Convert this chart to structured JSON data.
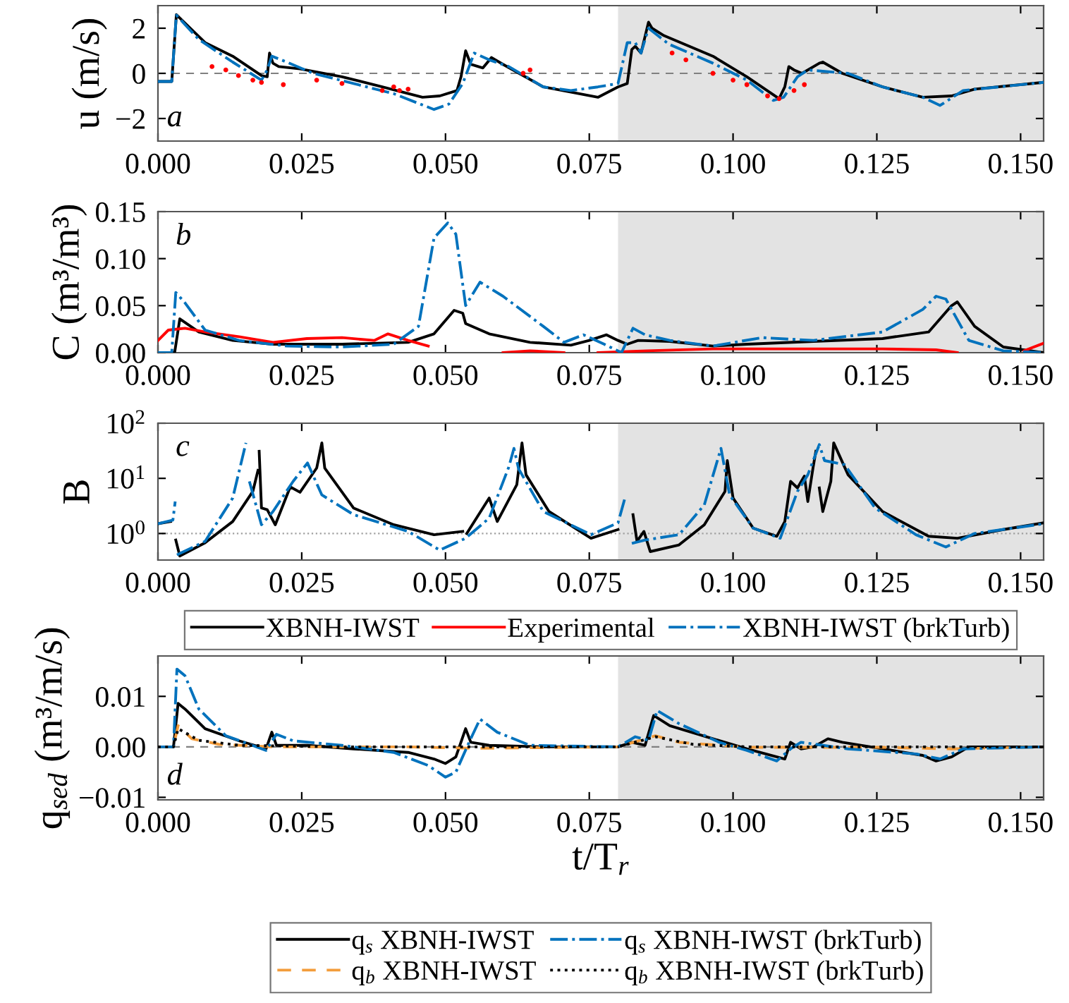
{
  "chart_data": [
    {
      "type": "line",
      "ylabel": "u (m/s)",
      "annotations": [
        "a"
      ],
      "xlim": [
        0,
        0.154
      ],
      "ylim": [
        -3,
        3
      ],
      "xticks": [
        {
          "value": 0,
          "label": "0.000"
        },
        {
          "value": 0.025,
          "label": "0.025"
        },
        {
          "value": 0.05,
          "label": "0.050"
        },
        {
          "value": 0.075,
          "label": "0.075"
        },
        {
          "value": 0.1,
          "label": "0.100"
        },
        {
          "value": 0.125,
          "label": "0.125"
        },
        {
          "value": 0.15,
          "label": "0.150"
        }
      ],
      "yticks": [
        {
          "value": -2,
          "label": "−2"
        },
        0,
        2
      ],
      "bands": [
        {
          "axis": "x",
          "from": 0.08,
          "to": 0.154,
          "color": "#e3e3e3"
        }
      ],
      "ref_lines": [
        {
          "axis": "y",
          "value": 0,
          "color": "#808080",
          "line_style": "dashed"
        }
      ],
      "series": [
        {
          "color": "#000000",
          "line_style": "solid",
          "x": [
            0,
            0.0024,
            0.0032,
            0.0082,
            0.013,
            0.018,
            0.019,
            0.0194,
            0.02,
            0.021,
            0.0247,
            0.032,
            0.039,
            0.046,
            0.049,
            0.052,
            0.0527,
            0.0535,
            0.0544,
            0.0565,
            0.058,
            0.06,
            0.067,
            0.0765,
            0.08,
            0.0816,
            0.0824,
            0.083,
            0.084,
            0.0853,
            0.0859,
            0.088,
            0.0965,
            0.1024,
            0.108,
            0.109,
            0.1097,
            0.1106,
            0.112,
            0.115,
            0.1156,
            0.119,
            0.126,
            0.133,
            0.138,
            0.142,
            0.154
          ],
          "values": [
            -0.36,
            -0.36,
            2.6,
            1.36,
            0.76,
            -0.1,
            -0.15,
            0.9,
            0.45,
            0.3,
            0.2,
            -0.15,
            -0.6,
            -1.06,
            -1.0,
            -0.76,
            -0.15,
            1.0,
            0.4,
            0.24,
            0.7,
            0.4,
            -0.6,
            -1.06,
            -0.6,
            -0.45,
            1.06,
            1.2,
            0.9,
            2.27,
            2.0,
            1.67,
            0.76,
            -0.15,
            -1.12,
            -0.6,
            0.3,
            0.15,
            0,
            0.45,
            0.5,
            0,
            -0.6,
            -1.06,
            -1.0,
            -0.7,
            -0.4
          ]
        },
        {
          "color": "#ff0000",
          "type": "scatter",
          "marker": "circle",
          "x": [
            0.0094,
            0.0118,
            0.014,
            0.0165,
            0.018,
            0.0218,
            0.0276,
            0.032,
            0.039,
            0.041,
            0.042,
            0.0435,
            0.0635,
            0.0647,
            0.0894,
            0.0918,
            0.0965,
            0.1,
            0.1024,
            0.106,
            0.108,
            0.1106,
            0.1124
          ],
          "values": [
            0.3,
            0.15,
            -0.1,
            -0.3,
            -0.4,
            -0.5,
            -0.3,
            -0.45,
            -0.76,
            -0.6,
            -0.76,
            -0.7,
            0,
            0.15,
            0.9,
            0.6,
            0,
            -0.3,
            -0.5,
            -1.0,
            -1.12,
            -0.76,
            -0.5
          ]
        },
        {
          "color": "#0072bd",
          "line_style": "dashdot",
          "x": [
            0,
            0.0024,
            0.0032,
            0.0071,
            0.013,
            0.018,
            0.019,
            0.0198,
            0.0224,
            0.027,
            0.034,
            0.041,
            0.048,
            0.0506,
            0.053,
            0.055,
            0.0576,
            0.061,
            0.067,
            0.0718,
            0.0765,
            0.08,
            0.0816,
            0.083,
            0.084,
            0.0853,
            0.0888,
            0.0965,
            0.1024,
            0.107,
            0.1088,
            0.1112,
            0.113,
            0.12,
            0.126,
            0.133,
            0.136,
            0.14,
            0.154
          ],
          "values": [
            -0.36,
            -0.36,
            2.58,
            1.5,
            0.5,
            -0.3,
            0.15,
            0.76,
            0.5,
            0,
            -0.45,
            -0.9,
            -1.6,
            -1.36,
            -0.45,
            0.9,
            0.6,
            0.3,
            -0.6,
            -0.76,
            -0.6,
            -0.45,
            1.36,
            1.36,
            0.9,
            2.0,
            1.3,
            0.45,
            -0.3,
            -1.2,
            -1.06,
            -0.15,
            0.15,
            0,
            -0.6,
            -1.06,
            -1.42,
            -0.76,
            -0.4
          ]
        }
      ]
    },
    {
      "type": "line",
      "ylabel": "C (m³/m³)",
      "annotations": [
        "b"
      ],
      "xlim": [
        0,
        0.154
      ],
      "ylim": [
        0,
        0.15
      ],
      "legend": "bottom",
      "xticks": [
        {
          "value": 0,
          "label": "0.000"
        },
        {
          "value": 0.025,
          "label": "0.025"
        },
        {
          "value": 0.05,
          "label": "0.050"
        },
        {
          "value": 0.075,
          "label": "0.075"
        },
        {
          "value": 0.1,
          "label": "0.100"
        },
        {
          "value": 0.125,
          "label": "0.125"
        },
        {
          "value": 0.15,
          "label": "0.150"
        }
      ],
      "yticks": [
        {
          "value": 0,
          "label": "0.00"
        },
        {
          "value": 0.05,
          "label": "0.05"
        },
        {
          "value": 0.1,
          "label": "0.10"
        },
        {
          "value": 0.15,
          "label": "0.15"
        }
      ],
      "bands": [
        {
          "axis": "x",
          "from": 0.08,
          "to": 0.154,
          "color": "#e3e3e3"
        }
      ],
      "series": [
        {
          "name": "XBNH-IWST",
          "color": "#000000",
          "line_style": "solid",
          "x": [
            0,
            0.0029,
            0.0038,
            0.0071,
            0.013,
            0.02,
            0.032,
            0.0435,
            0.048,
            0.0515,
            0.053,
            0.0535,
            0.0576,
            0.0647,
            0.0718,
            0.075,
            0.078,
            0.08,
            0.0816,
            0.0835,
            0.089,
            0.0965,
            0.1024,
            0.114,
            0.126,
            0.134,
            0.138,
            0.139,
            0.142,
            0.147,
            0.154
          ],
          "values": [
            0,
            0,
            0.036,
            0.022,
            0.013,
            0.009,
            0.009,
            0.011,
            0.02,
            0.045,
            0.042,
            0.031,
            0.02,
            0.011,
            0.008,
            0.013,
            0.019,
            0.013,
            0.009,
            0.013,
            0.012,
            0.007,
            0.009,
            0.012,
            0.015,
            0.022,
            0.05,
            0.054,
            0.028,
            0.006,
            0
          ]
        },
        {
          "name": "Experimental",
          "color": "#ff0000",
          "line_style": "solid",
          "x": [
            0,
            0.0018,
            0.0047,
            0.0082,
            0.0141,
            0.02,
            0.0259,
            0.032,
            0.0376,
            0.04,
            0.0435,
            0.047,
            0.05,
            0.06,
            0.0647,
            0.0706,
            0.073,
            0.0765,
            0.085,
            0.0965,
            0.114,
            0.126,
            0.1353,
            0.139,
            0.145,
            0.1506,
            0.154
          ],
          "values": [
            0.013,
            0.024,
            0.026,
            0.022,
            0.017,
            0.011,
            0.015,
            0.016,
            0.013,
            0.02,
            0.013,
            0.007,
            null,
            0,
            0.002,
            0,
            null,
            0,
            0.002,
            0.004,
            0.004,
            0.004,
            0.003,
            0,
            null,
            0.002,
            0.01
          ]
        },
        {
          "name": "XBNH-IWST (brkTurb)",
          "color": "#0072bd",
          "line_style": "dashdot",
          "x": [
            0,
            0.0024,
            0.0031,
            0.0047,
            0.0082,
            0.0141,
            0.0224,
            0.032,
            0.041,
            0.0453,
            0.048,
            0.0504,
            0.0518,
            0.0535,
            0.056,
            0.06,
            0.067,
            0.0706,
            0.074,
            0.0776,
            0.0806,
            0.0826,
            0.0847,
            0.089,
            0.0965,
            0.105,
            0.114,
            0.126,
            0.133,
            0.1353,
            0.137,
            0.141,
            0.147,
            0.154
          ],
          "values": [
            0,
            0,
            0.064,
            0.053,
            0.024,
            0.013,
            0.007,
            0.006,
            0.009,
            0.028,
            0.122,
            0.138,
            0.126,
            0.05,
            0.075,
            0.06,
            0.028,
            0.011,
            0.019,
            0.009,
            0,
            0.026,
            0.019,
            0.013,
            0.007,
            0.016,
            0.013,
            0.022,
            0.046,
            0.06,
            0.057,
            0.013,
            0.002,
            0
          ]
        }
      ]
    },
    {
      "type": "line",
      "ylabel": "B",
      "annotations": [
        "c"
      ],
      "log": "y",
      "xlim": [
        0,
        0.154
      ],
      "ylim": [
        0.33,
        100
      ],
      "xticks": [
        {
          "value": 0,
          "label": "0.000"
        },
        {
          "value": 0.025,
          "label": "0.025"
        },
        {
          "value": 0.05,
          "label": "0.050"
        },
        {
          "value": 0.075,
          "label": "0.075"
        },
        {
          "value": 0.1,
          "label": "0.100"
        },
        {
          "value": 0.125,
          "label": "0.125"
        },
        {
          "value": 0.15,
          "label": "0.150"
        }
      ],
      "yticks": [
        {
          "value": 1,
          "label": "10$^{0}$"
        },
        {
          "value": 10,
          "label": "10$^{1}$"
        },
        {
          "value": 100,
          "label": "10$^{2}$"
        }
      ],
      "bands": [
        {
          "axis": "x",
          "from": 0.08,
          "to": 0.154,
          "color": "#e3e3e3"
        }
      ],
      "ref_lines": [
        {
          "axis": "y",
          "value": 1,
          "color": "#a0a0a0",
          "line_style": "dotted"
        }
      ],
      "series": [
        {
          "color": "#000000",
          "line_style": "solid",
          "x": [
            0,
            0.0022,
            0.0026,
            0.0031,
            0.0038,
            0.0082,
            0.013,
            0.0165,
            0.0174,
            0.0175,
            0.0176,
            0.018,
            0.019,
            0.0204,
            0.023,
            0.0247,
            0.0276,
            0.0285,
            0.029,
            0.034,
            0.041,
            0.048,
            0.053,
            0.0533,
            0.0537,
            0.0576,
            0.059,
            0.0624,
            0.0633,
            0.064,
            0.068,
            0.0753,
            0.08,
            0.0813,
            0.0826,
            0.0833,
            0.0845,
            0.0856,
            0.0906,
            0.095,
            0.0986,
            0.099,
            0.1,
            0.1035,
            0.1076,
            0.109,
            0.11,
            0.1112,
            0.1124,
            0.113,
            0.1139,
            0.1144,
            0.1147,
            0.115,
            0.1156,
            0.117,
            0.1175,
            0.12,
            0.126,
            0.134,
            0.139,
            0.147,
            0.154
          ],
          "values": [
            1.5,
            1.65,
            null,
            0.76,
            0.39,
            0.68,
            1.65,
            5.8,
            14,
            null,
            31,
            2.9,
            2.7,
            1.44,
            7.0,
            5.6,
            15.4,
            44,
            15.4,
            2.9,
            1.44,
            0.95,
            1.09,
            null,
            1.0,
            4.4,
            1.65,
            7.7,
            44,
            11.6,
            2.5,
            0.82,
            1.18,
            null,
            2.2,
            0.72,
            1.09,
            0.47,
            0.62,
            1.44,
            5.8,
            21,
            4.4,
            1.25,
            0.89,
            1.65,
            8.8,
            6.7,
            11,
            3.8,
            15.4,
            31,
            null,
            6.7,
            2.5,
            8.8,
            44,
            11.6,
            2.5,
            0.89,
            0.82,
            1.18,
            1.56
          ]
        },
        {
          "color": "#0072bd",
          "line_style": "dashdot",
          "x": [
            0,
            0.0026,
            0.003,
            0.0031,
            0.0033,
            0.0082,
            0.013,
            0.0153,
            0.0156,
            0.0159,
            0.018,
            0.02,
            0.0235,
            0.026,
            0.0285,
            0.034,
            0.0435,
            0.049,
            0.0535,
            0.0576,
            0.061,
            0.0619,
            0.0627,
            0.067,
            0.0753,
            0.08,
            0.0812,
            0.0818,
            0.0824,
            0.0847,
            0.0906,
            0.095,
            0.0979,
            0.0994,
            0.1035,
            0.1082,
            0.1112,
            0.113,
            0.115,
            0.1159,
            0.1194,
            0.1247,
            0.1318,
            0.137,
            0.142,
            0.154
          ],
          "values": [
            1.5,
            1.75,
            3.8,
            null,
            0.41,
            0.72,
            4.4,
            44,
            null,
            8.8,
            1.44,
            2.5,
            8.8,
            19,
            5.0,
            2.2,
            1.09,
            0.5,
            0.82,
            1.9,
            16,
            35,
            15,
            2.5,
            0.95,
            1.56,
            4.4,
            null,
            0.66,
            0.76,
            0.95,
            3.3,
            35,
            5.0,
            1.25,
            0.82,
            5.8,
            11.6,
            41,
            21,
            17.7,
            2.9,
            0.95,
            0.57,
            1.0,
            1.5
          ]
        }
      ]
    },
    {
      "type": "line",
      "xlabel": "t/T$_{r}$",
      "ylabel": "q$_{sed}$ (m³/m/s)",
      "annotations": [
        "d"
      ],
      "xlim": [
        0,
        0.154
      ],
      "ylim": [
        -0.0105,
        0.018
      ],
      "legend": "bottom",
      "xticks": [
        {
          "value": 0,
          "label": "0.000"
        },
        {
          "value": 0.025,
          "label": "0.025"
        },
        {
          "value": 0.05,
          "label": "0.050"
        },
        {
          "value": 0.075,
          "label": "0.075"
        },
        {
          "value": 0.1,
          "label": "0.100"
        },
        {
          "value": 0.125,
          "label": "0.125"
        },
        {
          "value": 0.15,
          "label": "0.150"
        }
      ],
      "yticks": [
        {
          "value": -0.01,
          "label": "−0.01"
        },
        {
          "value": 0,
          "label": "0.00"
        },
        {
          "value": 0.01,
          "label": "0.01"
        }
      ],
      "bands": [
        {
          "axis": "x",
          "from": 0.08,
          "to": 0.154,
          "color": "#e3e3e3"
        }
      ],
      "ref_lines": [
        {
          "axis": "y",
          "value": 0,
          "color": "#808080",
          "line_style": "dashed"
        }
      ],
      "series": [
        {
          "name": "q$_{s}$ XBNH-IWST",
          "color": "#000000",
          "line_style": "solid",
          "x": [
            0,
            0.0027,
            0.0035,
            0.0047,
            0.0082,
            0.0141,
            0.0188,
            0.0198,
            0.0206,
            0.026,
            0.034,
            0.0435,
            0.048,
            0.05,
            0.0518,
            0.0535,
            0.0544,
            0.0576,
            0.067,
            0.08,
            0.0824,
            0.0847,
            0.0862,
            0.089,
            0.0965,
            0.1024,
            0.109,
            0.11,
            0.1118,
            0.114,
            0.1165,
            0.119,
            0.126,
            0.133,
            0.1353,
            0.138,
            0.141,
            0.154
          ],
          "values": [
            0,
            0,
            0.0086,
            0.0075,
            0.0036,
            0.0012,
            -0.0004,
            0.0029,
            0.0003,
            0.0003,
            -0.0004,
            -0.0011,
            -0.0024,
            -0.0033,
            -0.002,
            0.0036,
            0.0009,
            0.0003,
            0,
            0,
            0.0009,
            0.0003,
            0.0062,
            0.0042,
            0.0016,
            -0.0004,
            -0.0024,
            0.0009,
            -0.0004,
            0,
            0.0016,
            0.0009,
            -0.0004,
            -0.0017,
            -0.0028,
            -0.002,
            0,
            0
          ]
        },
        {
          "name": "q$_{b}$ XBNH-IWST",
          "color": "#f39c3b",
          "line_style": "dashed",
          "x": [
            0,
            0.0027,
            0.0035,
            0.0059,
            0.0106,
            0.02,
            0.0435,
            0.0553,
            0.08,
            0.0865,
            0.0906,
            0.1024,
            0.126,
            0.138,
            0.154
          ],
          "values": [
            0,
            0,
            0.0042,
            0.0016,
            0.0005,
            0,
            0,
            -0.0003,
            0,
            0.0022,
            0.0009,
            -0.0001,
            -0.0001,
            -0.0004,
            0
          ]
        },
        {
          "name": "q$_{s}$ XBNH-IWST (brkTurb)",
          "color": "#0072bd",
          "line_style": "dashdot",
          "x": [
            0,
            0.0027,
            0.0033,
            0.0047,
            0.0071,
            0.0118,
            0.0188,
            0.0206,
            0.0235,
            0.032,
            0.041,
            0.047,
            0.05,
            0.0518,
            0.0541,
            0.056,
            0.059,
            0.0647,
            0.08,
            0.083,
            0.0853,
            0.0868,
            0.0906,
            0.0976,
            0.1024,
            0.1076,
            0.11,
            0.1118,
            0.12,
            0.1318,
            0.136,
            0.14,
            0.154
          ],
          "values": [
            0,
            0,
            0.0154,
            0.0141,
            0.0075,
            0.0022,
            -0.0007,
            0.0025,
            0.0012,
            0.0003,
            -0.0011,
            -0.0037,
            -0.006,
            -0.005,
            0.0009,
            0.0055,
            0.0029,
            0.0003,
            0,
            0.002,
            0.0013,
            0.0072,
            0.0046,
            0.0009,
            -0.0007,
            -0.0028,
            -0.0004,
            0.0009,
            -0.0004,
            -0.0014,
            -0.0024,
            -0.0004,
            0
          ]
        },
        {
          "name": "q$_{b}$ XBNH-IWST (brkTurb)",
          "color": "#000000",
          "line_style": "dotted",
          "x": [
            0,
            0.0027,
            0.0035,
            0.0071,
            0.0141,
            0.032,
            0.08,
            0.0865,
            0.093,
            0.1024,
            0.154
          ],
          "values": [
            0,
            0,
            0.0036,
            0.0013,
            0.0003,
            0,
            0,
            0.002,
            0.0005,
            0,
            0
          ]
        }
      ]
    }
  ]
}
